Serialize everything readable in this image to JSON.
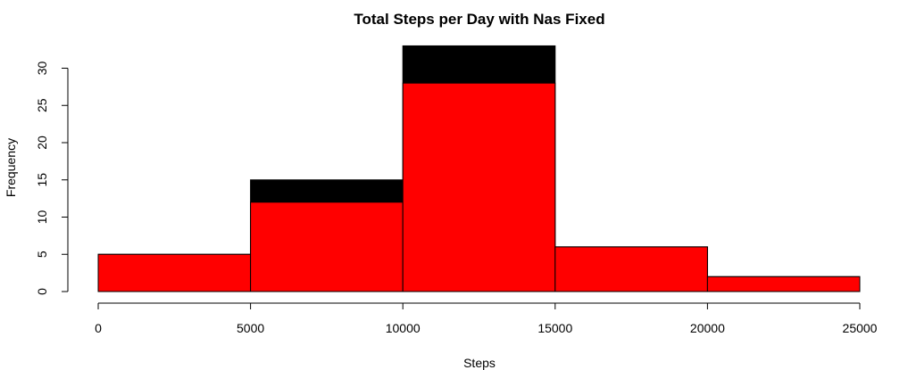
{
  "chart_data": {
    "type": "bar",
    "title": "Total Steps per Day with Nas Fixed",
    "xlabel": "Steps",
    "ylabel": "Frequency",
    "bins": [
      [
        0,
        5000
      ],
      [
        5000,
        10000
      ],
      [
        10000,
        15000
      ],
      [
        15000,
        20000
      ],
      [
        20000,
        25000
      ]
    ],
    "series": [
      {
        "values": [
          5,
          15,
          33,
          6,
          2
        ],
        "color": "#000000"
      },
      {
        "values": [
          5,
          12,
          28,
          6,
          2
        ],
        "color": "#ff0000"
      }
    ],
    "xticks": [
      0,
      5000,
      10000,
      15000,
      20000,
      25000
    ],
    "xtick_labels": [
      "0",
      "5000",
      "10000",
      "15000",
      "20000",
      "25000"
    ],
    "yticks": [
      0,
      5,
      10,
      15,
      20,
      25,
      30
    ],
    "ytick_labels": [
      "0",
      "5",
      "10",
      "15",
      "20",
      "25",
      "30"
    ],
    "xlim": [
      0,
      25000
    ],
    "ylim": [
      0,
      33
    ],
    "grid": false,
    "legend": "none"
  }
}
